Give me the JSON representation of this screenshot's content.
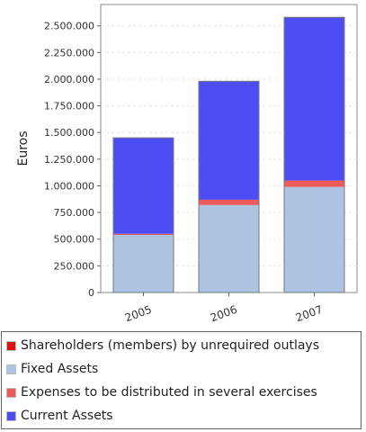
{
  "chart_data": {
    "type": "bar",
    "stacked": true,
    "categories": [
      "2005",
      "2006",
      "2007"
    ],
    "ylabel": "Euros",
    "xlabel": "",
    "ylim": [
      0,
      2700000
    ],
    "yticks": [
      0,
      250000,
      500000,
      750000,
      1000000,
      1250000,
      1500000,
      1750000,
      2000000,
      2250000,
      2500000
    ],
    "ytick_labels": [
      "0",
      "250.000",
      "500.000",
      "750.000",
      "1.000.000",
      "1.250.000",
      "1.500.000",
      "1.750.000",
      "2.000.000",
      "2.250.000",
      "2.500.000"
    ],
    "grid": true,
    "legend_position": "bottom",
    "series": [
      {
        "name": "Shareholders (members) by unrequired outlays",
        "color": "#dd1111",
        "values": [
          0,
          0,
          0
        ]
      },
      {
        "name": "Fixed Assets",
        "color": "#adc3e2",
        "values": [
          540000,
          820000,
          990000
        ]
      },
      {
        "name": "Expenses to be distributed in several exercises",
        "color": "#ec5b5b",
        "values": [
          10000,
          50000,
          60000
        ]
      },
      {
        "name": "Current Assets",
        "color": "#4d4df5",
        "values": [
          900000,
          1110000,
          1530000
        ]
      }
    ]
  }
}
